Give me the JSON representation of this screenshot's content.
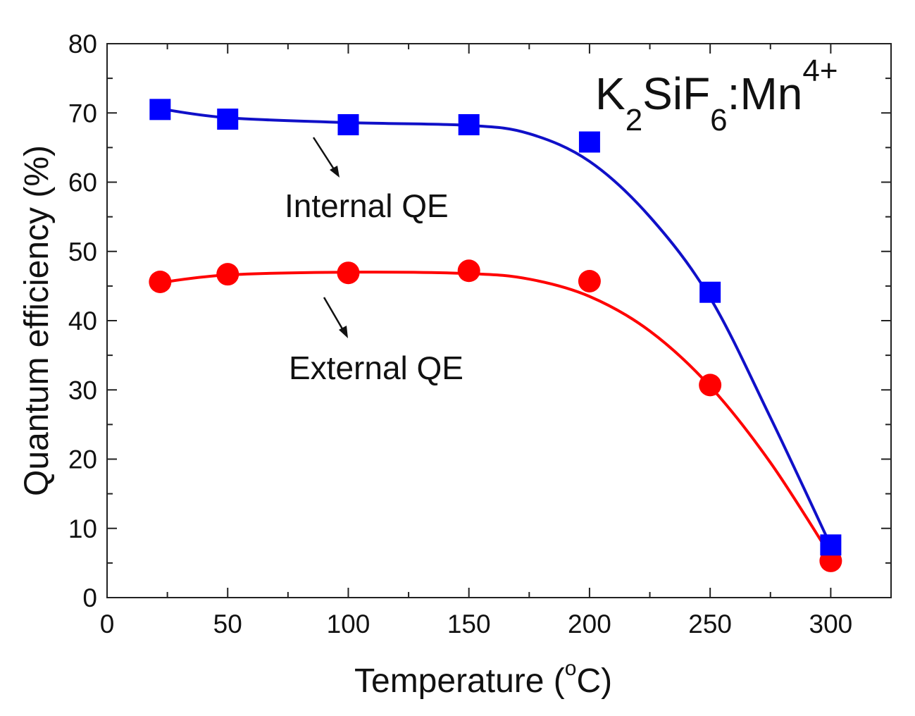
{
  "chart_data": {
    "type": "scatter",
    "title_parts": {
      "k": "K",
      "sub1": "2",
      "sif": "SiF",
      "sub2": "6",
      "mn": ":Mn",
      "sup": "4+"
    },
    "xlabel_main": "Temperature (",
    "xlabel_deg": "o",
    "xlabel_end": "C)",
    "ylabel": "Quantum efficiency (%)",
    "xlim": [
      0,
      325
    ],
    "ylim": [
      0,
      80
    ],
    "xticks": [
      0,
      50,
      100,
      150,
      200,
      250,
      300
    ],
    "yticks": [
      0,
      10,
      20,
      30,
      40,
      50,
      60,
      70,
      80
    ],
    "grid": false,
    "series": [
      {
        "name": "Internal QE",
        "marker": "square",
        "color": "#0000ff",
        "line_color": "#1010c8",
        "x": [
          22,
          50,
          100,
          150,
          200,
          250,
          300
        ],
        "y": [
          70.5,
          69.1,
          68.3,
          68.3,
          65.8,
          44.1,
          7.6
        ],
        "fit": [
          [
            22,
            70.6
          ],
          [
            50,
            69.3
          ],
          [
            100,
            68.6
          ],
          [
            150,
            68.2
          ],
          [
            175,
            67
          ],
          [
            200,
            63
          ],
          [
            225,
            55
          ],
          [
            250,
            43.3
          ],
          [
            275,
            26
          ],
          [
            300,
            7.5
          ]
        ]
      },
      {
        "name": "External QE",
        "marker": "circle",
        "color": "#ff0000",
        "line_color": "#ff0000",
        "x": [
          22,
          50,
          100,
          150,
          200,
          250,
          300
        ],
        "y": [
          45.6,
          46.7,
          46.9,
          47.2,
          45.7,
          30.7,
          5.3
        ],
        "fit": [
          [
            22,
            45.5
          ],
          [
            50,
            46.6
          ],
          [
            100,
            47
          ],
          [
            150,
            46.8
          ],
          [
            175,
            46
          ],
          [
            200,
            43.5
          ],
          [
            225,
            38.5
          ],
          [
            250,
            30.5
          ],
          [
            275,
            19.5
          ],
          [
            300,
            6
          ]
        ]
      }
    ],
    "annotations": [
      "Internal QE",
      "External QE"
    ]
  }
}
